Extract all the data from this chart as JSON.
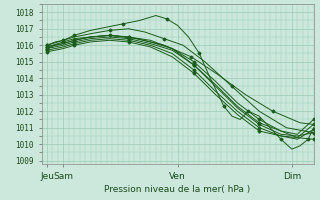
{
  "bg_color": "#cce8dc",
  "grid_color": "#99ccb3",
  "line_color": "#1a5c1a",
  "marker_color": "#1a5c1a",
  "ylabel_values": [
    1009,
    1010,
    1011,
    1012,
    1013,
    1014,
    1015,
    1016,
    1017,
    1018
  ],
  "ylim": [
    1008.8,
    1018.5
  ],
  "xlim": [
    0,
    100
  ],
  "xlabel": "Pression niveau de la mer( hPa )",
  "xtick_labels": [
    "Jeu",
    "Sam",
    "Ven",
    "Dim"
  ],
  "xtick_positions": [
    2,
    8,
    50,
    92
  ],
  "lines": [
    [
      2,
      1015.9,
      4,
      1016.0,
      6,
      1016.1,
      8,
      1016.2,
      12,
      1016.4,
      18,
      1016.5,
      25,
      1016.6,
      35,
      1016.4,
      45,
      1016.0,
      55,
      1015.3,
      65,
      1014.2,
      75,
      1013.0,
      85,
      1012.0,
      95,
      1011.3,
      100,
      1011.2
    ],
    [
      2,
      1016.0,
      4,
      1016.1,
      6,
      1016.2,
      8,
      1016.3,
      12,
      1016.5,
      18,
      1016.7,
      25,
      1016.9,
      32,
      1017.0,
      38,
      1016.8,
      45,
      1016.4,
      52,
      1016.0,
      60,
      1015.0,
      70,
      1013.5,
      80,
      1012.0,
      90,
      1011.0,
      100,
      1010.7
    ],
    [
      2,
      1016.0,
      5,
      1016.2,
      8,
      1016.3,
      12,
      1016.6,
      18,
      1016.9,
      24,
      1017.1,
      30,
      1017.3,
      36,
      1017.5,
      42,
      1017.8,
      46,
      1017.6,
      50,
      1017.2,
      54,
      1016.5,
      58,
      1015.5,
      62,
      1014.0,
      65,
      1013.0,
      67,
      1012.3,
      70,
      1011.7,
      73,
      1011.5,
      76,
      1012.0,
      80,
      1011.7,
      84,
      1011.0,
      88,
      1010.3,
      92,
      1009.7,
      95,
      1009.9,
      98,
      1010.3,
      100,
      1011.0
    ],
    [
      2,
      1015.8,
      5,
      1016.0,
      8,
      1016.1,
      12,
      1016.3,
      18,
      1016.5,
      25,
      1016.6,
      32,
      1016.5,
      40,
      1016.3,
      48,
      1015.8,
      56,
      1015.0,
      64,
      1013.8,
      72,
      1012.5,
      80,
      1011.5,
      88,
      1010.8,
      94,
      1010.4,
      100,
      1010.3
    ],
    [
      2,
      1015.8,
      5,
      1015.9,
      8,
      1016.0,
      12,
      1016.2,
      18,
      1016.4,
      25,
      1016.5,
      32,
      1016.4,
      40,
      1016.1,
      48,
      1015.7,
      56,
      1014.8,
      64,
      1013.5,
      72,
      1012.2,
      80,
      1011.2,
      88,
      1010.6,
      94,
      1010.5,
      100,
      1010.7
    ],
    [
      2,
      1015.7,
      5,
      1015.8,
      8,
      1015.9,
      12,
      1016.1,
      18,
      1016.3,
      25,
      1016.4,
      32,
      1016.3,
      40,
      1016.0,
      48,
      1015.5,
      56,
      1014.5,
      64,
      1013.2,
      72,
      1012.0,
      80,
      1011.0,
      88,
      1010.5,
      94,
      1010.3,
      100,
      1010.9
    ],
    [
      2,
      1015.6,
      5,
      1015.7,
      8,
      1015.8,
      12,
      1016.0,
      18,
      1016.2,
      25,
      1016.3,
      32,
      1016.2,
      40,
      1015.9,
      48,
      1015.3,
      56,
      1014.3,
      64,
      1013.0,
      72,
      1011.8,
      80,
      1010.8,
      88,
      1010.5,
      94,
      1010.4,
      100,
      1011.2
    ],
    [
      2,
      1015.9,
      5,
      1016.0,
      8,
      1016.1,
      12,
      1016.3,
      18,
      1016.5,
      25,
      1016.6,
      32,
      1016.5,
      40,
      1016.2,
      48,
      1015.8,
      56,
      1014.8,
      64,
      1013.6,
      72,
      1012.3,
      80,
      1011.3,
      88,
      1010.8,
      94,
      1010.6,
      100,
      1011.5
    ]
  ]
}
